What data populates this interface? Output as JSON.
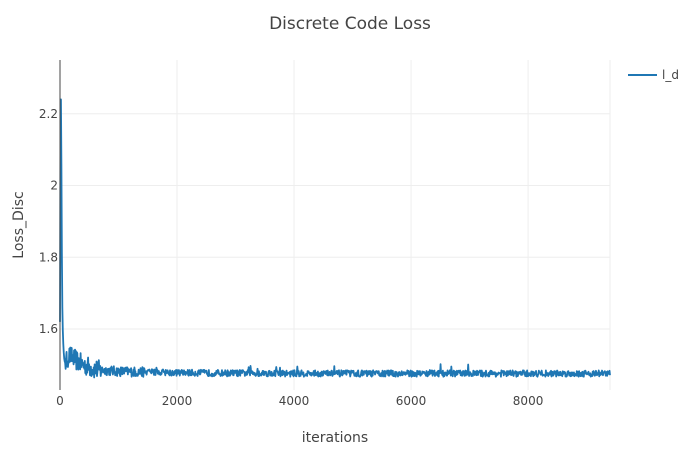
{
  "chart_data": {
    "type": "line",
    "title": "Discrete Code Loss",
    "xlabel": "iterations",
    "ylabel": "Loss_Disc",
    "xlim": [
      0,
      9400
    ],
    "ylim": [
      1.43,
      2.35
    ],
    "x_ticks": [
      0,
      2000,
      4000,
      6000,
      8000
    ],
    "x_tick_labels": [
      "0",
      "2000",
      "4000",
      "6000",
      "8000"
    ],
    "y_ticks": [
      1.6,
      1.8,
      2,
      2.2
    ],
    "y_tick_labels": [
      "1.6",
      "1.8",
      "2",
      "2.2"
    ],
    "grid": true,
    "legend_position": "top-right",
    "series": [
      {
        "name": "l_d",
        "color": "#1f77b4",
        "x": [
          0,
          10,
          20,
          30,
          40,
          50,
          60,
          70,
          80,
          100,
          120,
          150,
          180,
          220,
          260,
          300,
          350,
          400,
          450,
          500,
          550,
          600,
          700,
          800,
          900,
          1000,
          1200,
          1400,
          1600,
          1800,
          2000,
          2300,
          2600,
          3000,
          3500,
          4000,
          4500,
          5000,
          5500,
          6000,
          6500,
          7000,
          7500,
          8000,
          8500,
          9000,
          9400
        ],
        "y": [
          1.62,
          2.3,
          2.2,
          1.85,
          1.66,
          1.58,
          1.545,
          1.52,
          1.51,
          1.5,
          1.515,
          1.525,
          1.525,
          1.52,
          1.515,
          1.51,
          1.505,
          1.5,
          1.497,
          1.495,
          1.49,
          1.488,
          1.485,
          1.485,
          1.483,
          1.482,
          1.481,
          1.48,
          1.48,
          1.479,
          1.478,
          1.478,
          1.477,
          1.477,
          1.477,
          1.476,
          1.476,
          1.476,
          1.476,
          1.476,
          1.476,
          1.476,
          1.476,
          1.476,
          1.476,
          1.476,
          1.476
        ]
      }
    ]
  }
}
